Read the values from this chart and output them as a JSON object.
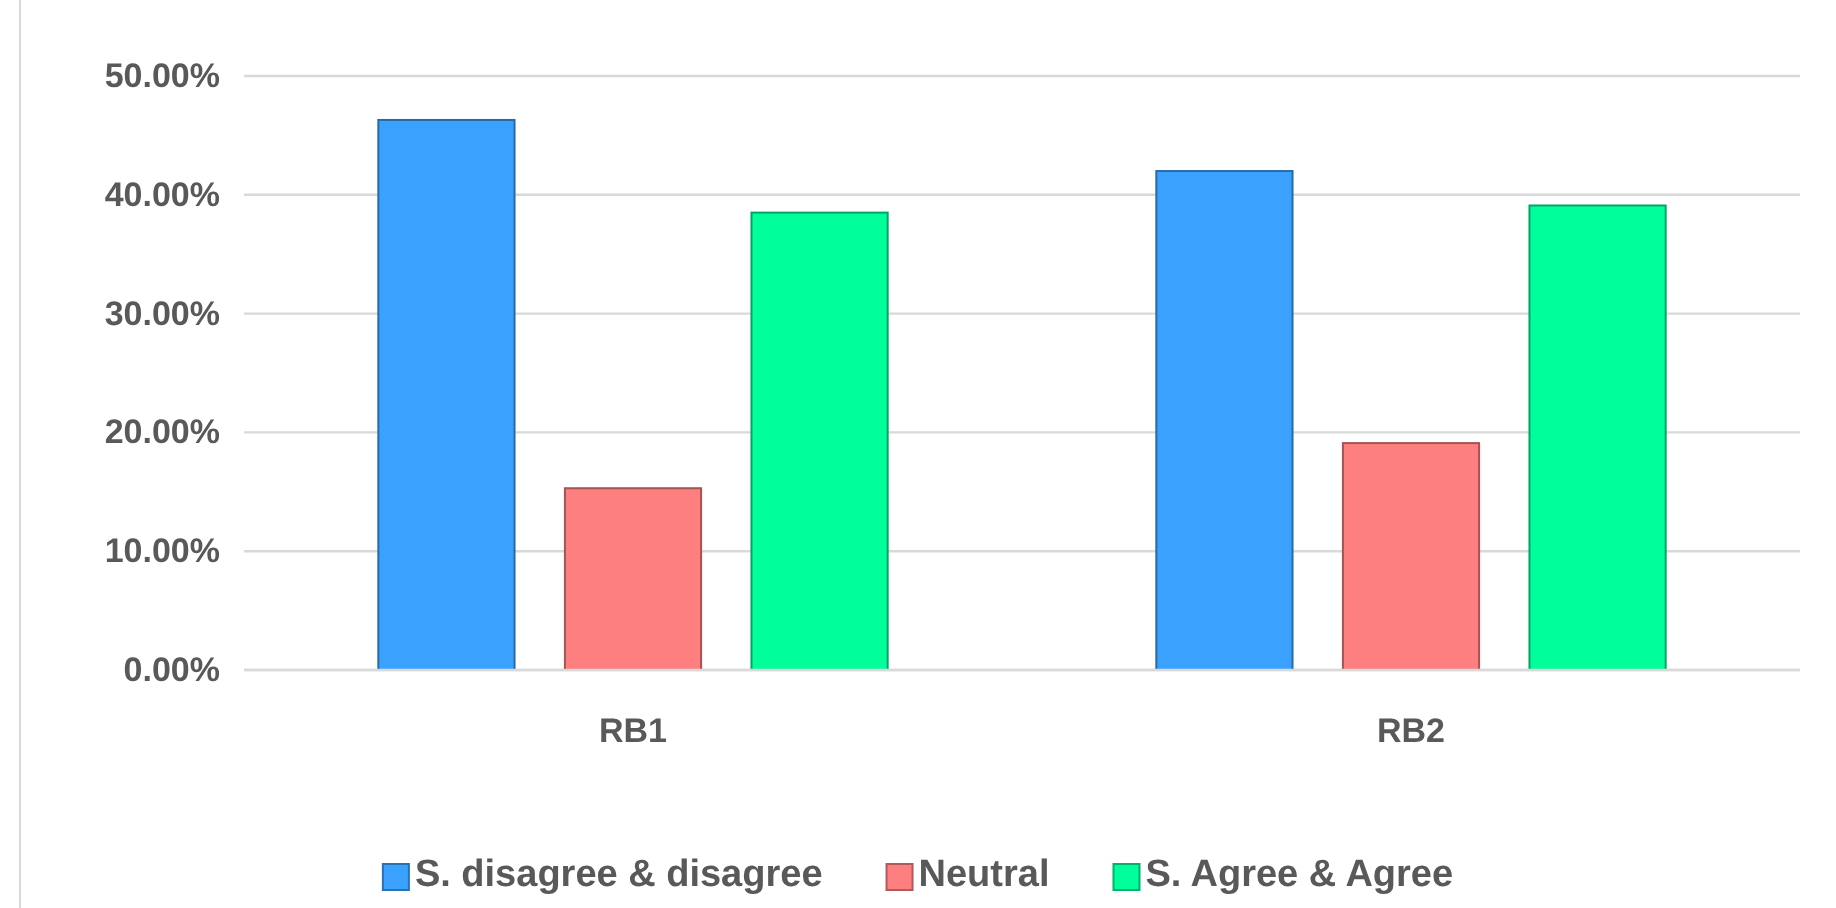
{
  "chart_data": {
    "type": "bar",
    "categories": [
      "RB1",
      "RB2"
    ],
    "series": [
      {
        "name": "S. disagree & disagree",
        "color": "#3aa2fe",
        "values": [
          46.3,
          42.0
        ]
      },
      {
        "name": "Neutral",
        "color": "#fe7f7f",
        "values": [
          15.3,
          19.1
        ]
      },
      {
        "name": "S. Agree & Agree",
        "color": "#00fe9a",
        "values": [
          38.5,
          39.1
        ]
      }
    ],
    "ylim": [
      0,
      50
    ],
    "yticks": [
      {
        "value": 0,
        "label": "0.00%"
      },
      {
        "value": 10,
        "label": "10.00%"
      },
      {
        "value": 20,
        "label": "20.00%"
      },
      {
        "value": 30,
        "label": "30.00%"
      },
      {
        "value": 40,
        "label": "40.00%"
      },
      {
        "value": 50,
        "label": "50.00%"
      }
    ],
    "grid": "y",
    "legend": "bottom"
  }
}
